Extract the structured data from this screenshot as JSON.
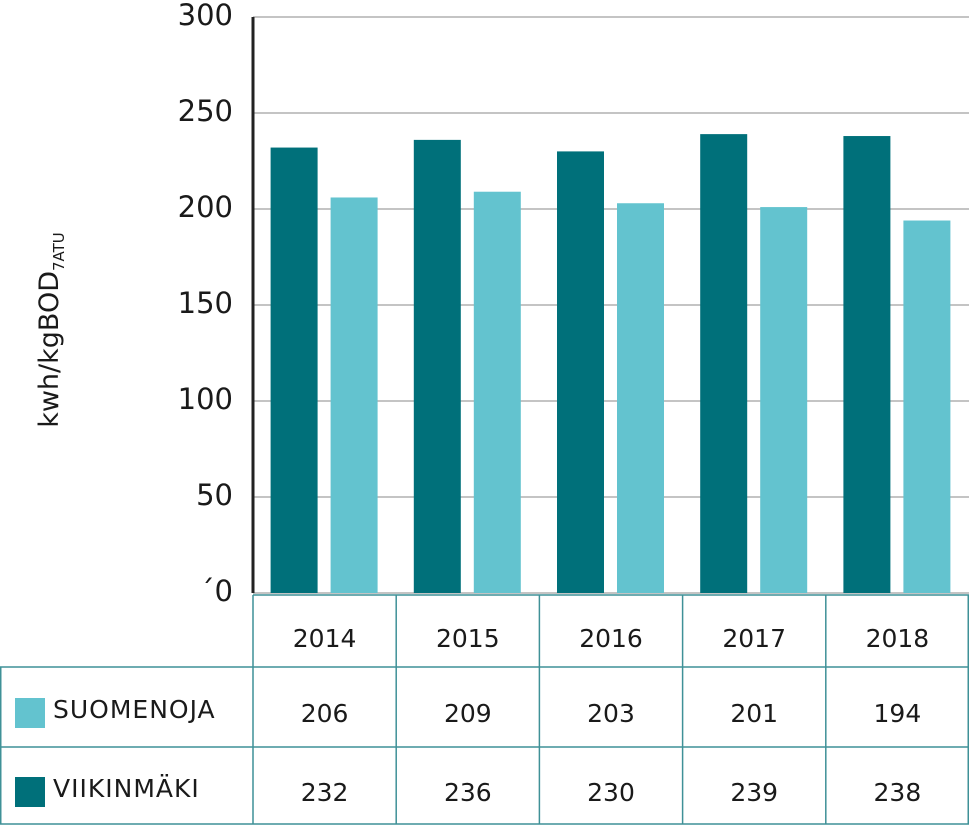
{
  "chart_data": {
    "type": "bar",
    "ylabel": {
      "text": "kwh/kgBOD",
      "subscript": "7ATU"
    },
    "categories": [
      "2014",
      "2015",
      "2016",
      "2017",
      "2018"
    ],
    "series": [
      {
        "name": "SUOMENOJA",
        "color": "#63c3cf",
        "values": [
          206,
          209,
          203,
          201,
          194
        ]
      },
      {
        "name": "VIIKINMÄKI",
        "color": "#00707a",
        "values": [
          232,
          236,
          230,
          239,
          238
        ]
      }
    ],
    "ylim": [
      0,
      300
    ],
    "yticks": [
      {
        "value": 0,
        "label": "´0"
      },
      50,
      100,
      150,
      200,
      250,
      300
    ],
    "grid": true
  }
}
